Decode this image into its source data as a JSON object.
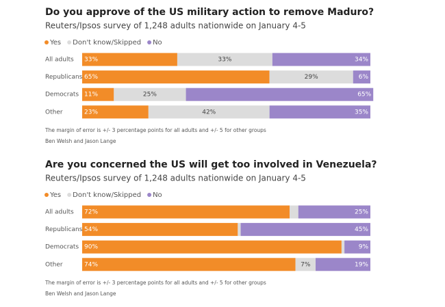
{
  "chart_data": [
    {
      "type": "bar",
      "stacked": true,
      "orientation": "horizontal",
      "title": "Do you approve of the US military action to remove Maduro?",
      "subtitle": "Reuters/Ipsos survey of 1,248 adults nationwide on January 4-5",
      "categories": [
        "All adults",
        "Republicans",
        "Democrats",
        "Other"
      ],
      "xlim": [
        0,
        100
      ],
      "series": [
        {
          "name": "Yes",
          "color": "#f28c28",
          "values": [
            33,
            65,
            11,
            23
          ],
          "value_labels": [
            "33%",
            "65%",
            "11%",
            "23%"
          ]
        },
        {
          "name": "Don't know/Skipped",
          "color": "#dcdcdc",
          "values": [
            33,
            29,
            25,
            42
          ],
          "value_labels": [
            "33%",
            "29%",
            "25%",
            "42%"
          ]
        },
        {
          "name": "No",
          "color": "#9b86c9",
          "values": [
            34,
            6,
            65,
            35
          ],
          "value_labels": [
            "34%",
            "6%",
            "65%",
            "35%"
          ]
        }
      ],
      "note": "The margin of error is +/- 3 percentage points for all adults and +/- 5 for other groups",
      "credit": "Ben Welsh and Jason Lange"
    },
    {
      "type": "bar",
      "stacked": true,
      "orientation": "horizontal",
      "title": "Are you concerned the US will get too involved in Venezuela?",
      "subtitle": "Reuters/Ipsos survey of 1,248 adults nationwide on January 4-5",
      "categories": [
        "All adults",
        "Republicans",
        "Democrats",
        "Other"
      ],
      "xlim": [
        0,
        100
      ],
      "series": [
        {
          "name": "Yes",
          "color": "#f28c28",
          "values": [
            72,
            54,
            90,
            74
          ],
          "value_labels": [
            "72%",
            "54%",
            "90%",
            "74%"
          ]
        },
        {
          "name": "Don't know/Skipped",
          "color": "#dcdcdc",
          "values": [
            3,
            1,
            1,
            7
          ],
          "value_labels": [
            null,
            null,
            null,
            "7%"
          ]
        },
        {
          "name": "No",
          "color": "#9b86c9",
          "values": [
            25,
            45,
            9,
            19
          ],
          "value_labels": [
            "25%",
            "45%",
            "9%",
            "19%"
          ]
        }
      ],
      "note": "The margin of error is +/- 3 percentage points for all adults and +/- 5 for other groups",
      "credit": "Ben Welsh and Jason Lange"
    }
  ]
}
